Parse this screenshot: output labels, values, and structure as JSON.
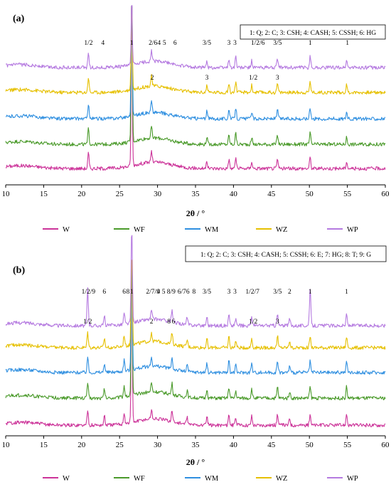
{
  "chart_data": [
    {
      "type": "line",
      "panel_label": "(a)",
      "xlabel": "2θ / °",
      "xlim": [
        10,
        60
      ],
      "x_ticks": [
        10,
        15,
        20,
        25,
        30,
        35,
        40,
        45,
        50,
        55,
        60
      ],
      "legend_box": "1: Q; 2: C; 3: CSH; 4: CASH; 5: CSSH; 6: HG",
      "grid": false,
      "series": [
        {
          "name": "W",
          "color": "#cc3399"
        },
        {
          "name": "WF",
          "color": "#4a9a2a"
        },
        {
          "name": "WM",
          "color": "#2f8fe0"
        },
        {
          "name": "WZ",
          "color": "#e6c000"
        },
        {
          "name": "WP",
          "color": "#b57ae0"
        }
      ],
      "peaks": [
        20.9,
        26.6,
        29.2,
        36.5,
        39.4,
        40.3,
        42.4,
        45.8,
        50.1,
        54.9
      ],
      "annotations": [
        {
          "text": "1/2",
          "x": 20.9,
          "row": 0
        },
        {
          "text": "4",
          "x": 22.8,
          "row": 0
        },
        {
          "text": "1",
          "x": 26.6,
          "row": 0
        },
        {
          "text": "2/6",
          "x": 29.4,
          "row": 0
        },
        {
          "text": "4",
          "x": 30.2,
          "row": 0
        },
        {
          "text": "5",
          "x": 30.9,
          "row": 0
        },
        {
          "text": "6",
          "x": 32.3,
          "row": 0
        },
        {
          "text": "3/5",
          "x": 36.5,
          "row": 0
        },
        {
          "text": "3",
          "x": 39.4,
          "row": 0
        },
        {
          "text": "3",
          "x": 40.2,
          "row": 0
        },
        {
          "text": "1/2/6",
          "x": 43.2,
          "row": 0
        },
        {
          "text": "3/5",
          "x": 45.8,
          "row": 0
        },
        {
          "text": "1",
          "x": 50.1,
          "row": 0
        },
        {
          "text": "1",
          "x": 55.0,
          "row": 0
        },
        {
          "text": "2",
          "x": 29.3,
          "row": 1
        },
        {
          "text": "3",
          "x": 36.5,
          "row": 1
        },
        {
          "text": "1/2",
          "x": 42.6,
          "row": 1
        },
        {
          "text": "3",
          "x": 45.8,
          "row": 1
        }
      ]
    },
    {
      "type": "line",
      "panel_label": "(b)",
      "xlabel": "2θ / °",
      "xlim": [
        10,
        60
      ],
      "x_ticks": [
        10,
        15,
        20,
        25,
        30,
        35,
        40,
        45,
        50,
        55,
        60
      ],
      "legend_box": "1: Q; 2: C; 3: CSH; 4: CASH; 5: CSSH; 6: E; 7: HG; 8: T; 9: G",
      "grid": false,
      "series": [
        {
          "name": "W",
          "color": "#cc3399"
        },
        {
          "name": "WF",
          "color": "#4a9a2a"
        },
        {
          "name": "WM",
          "color": "#2f8fe0"
        },
        {
          "name": "WZ",
          "color": "#e6c000"
        },
        {
          "name": "WP",
          "color": "#b57ae0"
        }
      ],
      "peaks": [
        20.8,
        23.0,
        25.6,
        26.6,
        29.2,
        31.9,
        33.9,
        36.5,
        39.4,
        40.3,
        42.4,
        45.8,
        47.4,
        50.1,
        54.9
      ],
      "annotations": [
        {
          "text": "1/2/9",
          "x": 20.9,
          "row": 0
        },
        {
          "text": "6",
          "x": 23.0,
          "row": 0
        },
        {
          "text": "6",
          "x": 25.6,
          "row": 0
        },
        {
          "text": "8",
          "x": 26.1,
          "row": 0
        },
        {
          "text": "1",
          "x": 26.6,
          "row": 0
        },
        {
          "text": "2/7/9",
          "x": 29.4,
          "row": 0
        },
        {
          "text": "4",
          "x": 30.1,
          "row": 0
        },
        {
          "text": "5",
          "x": 30.8,
          "row": 0
        },
        {
          "text": "8/9",
          "x": 31.8,
          "row": 0
        },
        {
          "text": "6/7",
          "x": 33.2,
          "row": 0
        },
        {
          "text": "6",
          "x": 34.0,
          "row": 0
        },
        {
          "text": "8",
          "x": 34.8,
          "row": 0
        },
        {
          "text": "3/5",
          "x": 36.5,
          "row": 0
        },
        {
          "text": "3",
          "x": 39.4,
          "row": 0
        },
        {
          "text": "3",
          "x": 40.2,
          "row": 0
        },
        {
          "text": "1/2/7",
          "x": 42.5,
          "row": 0
        },
        {
          "text": "3/5",
          "x": 45.8,
          "row": 0
        },
        {
          "text": "2",
          "x": 47.4,
          "row": 0
        },
        {
          "text": "1",
          "x": 50.1,
          "row": 0
        },
        {
          "text": "1",
          "x": 54.9,
          "row": 0
        },
        {
          "text": "1/2",
          "x": 20.8,
          "row": 1
        },
        {
          "text": "2",
          "x": 29.2,
          "row": 1
        },
        {
          "text": "8",
          "x": 31.5,
          "row": 1
        },
        {
          "text": "6",
          "x": 32.1,
          "row": 1
        },
        {
          "text": "1/2",
          "x": 42.6,
          "row": 1
        },
        {
          "text": "3",
          "x": 45.8,
          "row": 1
        }
      ]
    }
  ]
}
